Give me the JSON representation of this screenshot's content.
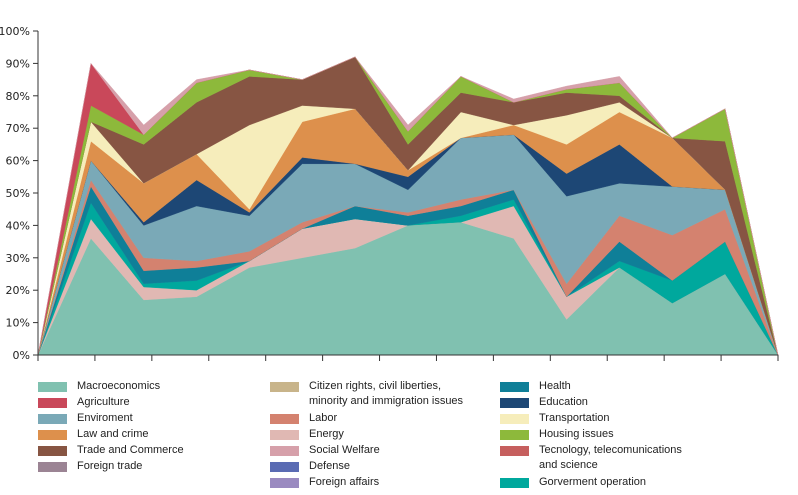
{
  "chart_data": {
    "type": "area",
    "stacked": true,
    "title": "",
    "xlabel": "",
    "ylabel": "",
    "ylim": [
      0,
      100
    ],
    "y_ticks": [
      "0%",
      "10%",
      "20%",
      "30%",
      "40%",
      "50%",
      "60%",
      "70%",
      "80%",
      "90%",
      "100%"
    ],
    "x_points": 14,
    "grid": false,
    "legend_position": "bottom",
    "series": [
      {
        "name": "Macroeconomics",
        "color": "#80c1b0",
        "values": [
          0,
          36,
          17,
          18,
          27,
          30,
          33,
          40,
          41,
          36,
          11,
          27,
          16,
          25,
          0
        ]
      },
      {
        "name": "Energy",
        "color": "#e0b8b3",
        "values": [
          0,
          6,
          4,
          2,
          2,
          9,
          9,
          0,
          0,
          10,
          7,
          0,
          0,
          0,
          0
        ]
      },
      {
        "name": "Gorverment operation",
        "color": "#00a89d",
        "values": [
          0,
          5,
          1,
          3,
          0,
          0,
          0,
          0,
          2,
          2,
          0,
          2,
          7,
          10,
          0
        ]
      },
      {
        "name": "Health",
        "color": "#0f7f98",
        "values": [
          0,
          5,
          4,
          4,
          0,
          0,
          4,
          3,
          3,
          3,
          0,
          6,
          0,
          0,
          0
        ]
      },
      {
        "name": "Labor",
        "color": "#d4826f",
        "values": [
          0,
          2,
          4,
          2,
          3,
          2,
          0,
          1,
          2,
          0,
          4,
          8,
          14,
          10,
          0
        ]
      },
      {
        "name": "Enviroment",
        "color": "#7aa9b7",
        "values": [
          0,
          6,
          10,
          17,
          11,
          18,
          13,
          7,
          19,
          17,
          27,
          10,
          15,
          6,
          0
        ]
      },
      {
        "name": "Education",
        "color": "#1d4775",
        "values": [
          0,
          0,
          1,
          8,
          1,
          2,
          0,
          4,
          0,
          0,
          7,
          12,
          0,
          0,
          0
        ]
      },
      {
        "name": "Law and crime",
        "color": "#dd904c",
        "values": [
          0,
          6,
          12,
          8,
          1,
          11,
          17,
          2,
          0,
          3,
          9,
          10,
          15,
          0,
          0
        ]
      },
      {
        "name": "Transportation",
        "color": "#f6edbb",
        "values": [
          0,
          6,
          0,
          0,
          26,
          5,
          0,
          0,
          8,
          0,
          9,
          3,
          0,
          0,
          0
        ]
      },
      {
        "name": "Trade and Commerce",
        "color": "#875543",
        "values": [
          0,
          0,
          12,
          16,
          15,
          8,
          16,
          8,
          6,
          7,
          7,
          2,
          0,
          15,
          0
        ]
      },
      {
        "name": "Housing issues",
        "color": "#8db93b",
        "values": [
          0,
          5,
          3,
          6,
          2,
          0,
          0,
          4,
          5,
          0,
          1,
          4,
          0,
          10,
          0
        ]
      },
      {
        "name": "Agriculture",
        "color": "#c9485a",
        "values": [
          0,
          13,
          0,
          0,
          0,
          0,
          0,
          0,
          0,
          0,
          0,
          0,
          0,
          0,
          0
        ]
      },
      {
        "name": "Social Welfare",
        "color": "#d6a0aa",
        "values": [
          0,
          0,
          3,
          1,
          0,
          0,
          0,
          2,
          0,
          1,
          1,
          2,
          0,
          0,
          0
        ]
      }
    ],
    "legend": [
      {
        "label": "Macroeconomics",
        "color": "#80c1b0"
      },
      {
        "label": "Agriculture",
        "color": "#c9485a"
      },
      {
        "label": "Enviroment",
        "color": "#7aa9b7"
      },
      {
        "label": "Law and crime",
        "color": "#dd904c"
      },
      {
        "label": "Trade and Commerce",
        "color": "#875543"
      },
      {
        "label": "Foreign trade",
        "color": "#9b8494"
      },
      {
        "label": "Citizen rights, civil liberties,\nminority and immigration issues",
        "color": "#c8b48a"
      },
      {
        "label": "Labor",
        "color": "#d4826f"
      },
      {
        "label": "Energy",
        "color": "#e0b8b3"
      },
      {
        "label": "Social Welfare",
        "color": "#d6a0aa"
      },
      {
        "label": "Defense",
        "color": "#5a6bb3"
      },
      {
        "label": "Foreign affairs",
        "color": "#9a8ac0"
      },
      {
        "label": "Health",
        "color": "#0f7f98"
      },
      {
        "label": "Education",
        "color": "#1d4775"
      },
      {
        "label": "Transportation",
        "color": "#f6edbb"
      },
      {
        "label": "Housing issues",
        "color": "#8db93b"
      },
      {
        "label": "Tecnology, telecomunications\nand science",
        "color": "#c65f5e"
      },
      {
        "label": "Gorverment operation",
        "color": "#00a89d"
      }
    ]
  }
}
